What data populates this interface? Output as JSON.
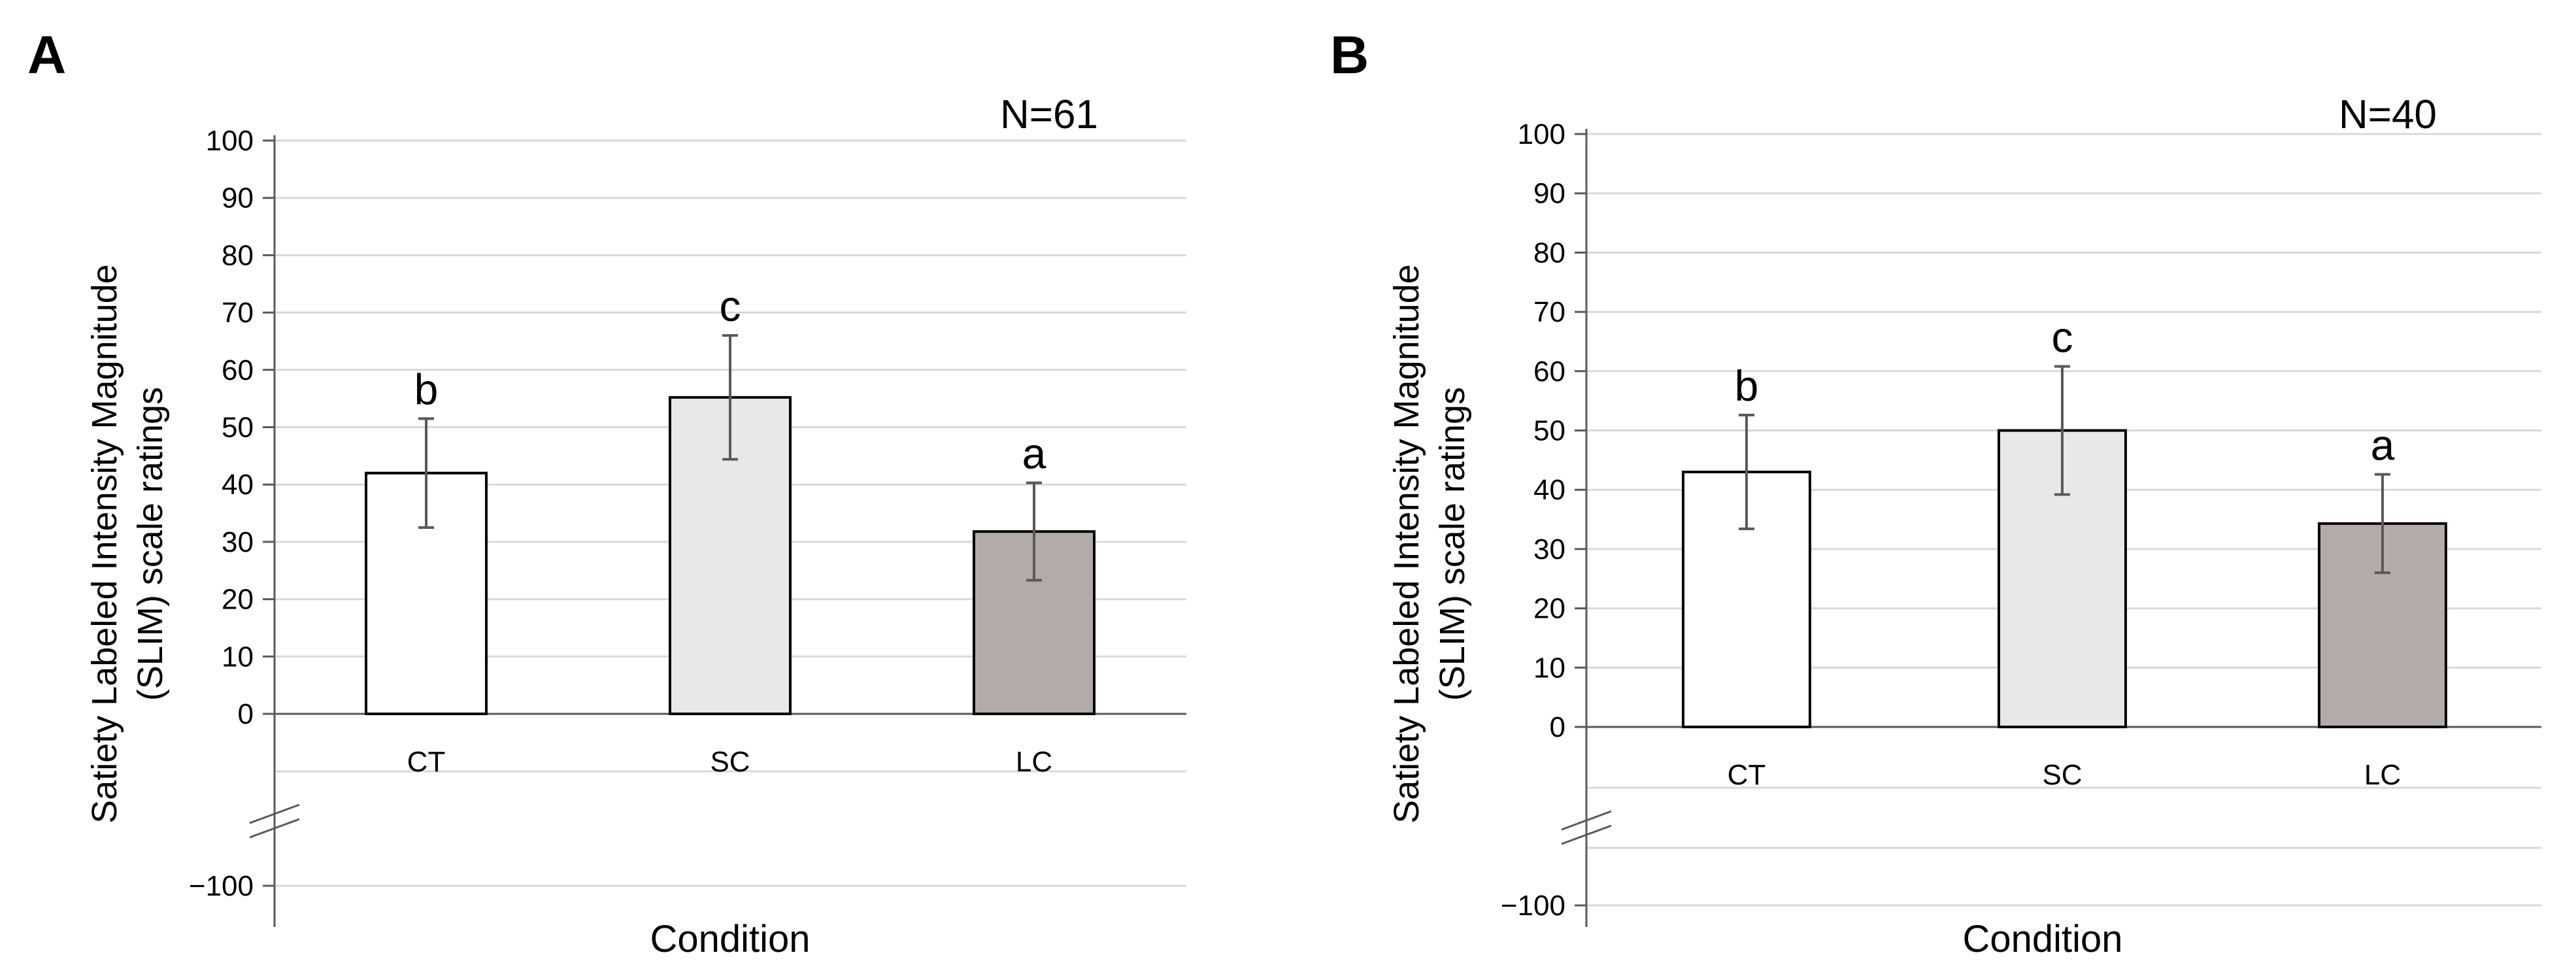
{
  "chart_data": [
    {
      "type": "bar",
      "panel_label": "A",
      "n_label": "N=61",
      "categories": [
        "CT",
        "SC",
        "LC"
      ],
      "values": [
        42,
        55.2,
        31.8
      ],
      "error": [
        9.5,
        10.8,
        8.5
      ],
      "significance": [
        "b",
        "c",
        "a"
      ],
      "bar_colors": [
        "#ffffff",
        "#e8e8e8",
        "#b3aba8"
      ],
      "xlabel": "Condition",
      "ylabel_line1": "Satiety Labeled Intensity Magnitude",
      "ylabel_line2": "(SLIM) scale ratings",
      "yticks": [
        100,
        90,
        80,
        70,
        60,
        50,
        40,
        30,
        20,
        10,
        0
      ],
      "ytick_labels": [
        "100",
        "90",
        "80",
        "70",
        "60",
        "50",
        "40",
        "30",
        "20",
        "10",
        "0"
      ],
      "ybreak_tick": -100,
      "ybreak_tick_label": "−100",
      "ylim": [
        -100,
        100
      ],
      "grid": true
    },
    {
      "type": "bar",
      "panel_label": "B",
      "n_label": "N=40",
      "categories": [
        "CT",
        "SC",
        "LC"
      ],
      "values": [
        43,
        50,
        34.3
      ],
      "error": [
        9.6,
        10.8,
        8.3
      ],
      "significance": [
        "b",
        "c",
        "a"
      ],
      "bar_colors": [
        "#ffffff",
        "#e8e8e8",
        "#b3aba8"
      ],
      "xlabel": "Condition",
      "ylabel_line1": "Satiety Labeled Intensity Magnitude",
      "ylabel_line2": "(SLIM) scale ratings",
      "yticks": [
        100,
        90,
        80,
        70,
        60,
        50,
        40,
        30,
        20,
        10,
        0
      ],
      "ytick_labels": [
        "100",
        "90",
        "80",
        "70",
        "60",
        "50",
        "40",
        "30",
        "20",
        "10",
        "0"
      ],
      "ybreak_tick": -100,
      "ybreak_tick_label": "−100",
      "ylim": [
        -100,
        100
      ],
      "grid": true
    }
  ]
}
